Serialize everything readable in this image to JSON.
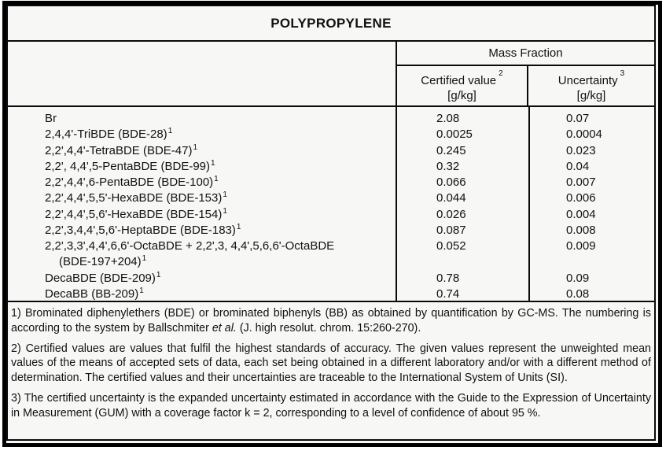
{
  "title": "POLYPROPYLENE",
  "colors": {
    "background": "#f7f7f6",
    "border": "#000000",
    "text": "#111111"
  },
  "table": {
    "group_header": "Mass Fraction",
    "columns": {
      "certified": {
        "label": "Certified value",
        "sup": "2",
        "unit": "[g/kg]"
      },
      "uncertainty": {
        "label": "Uncertainty",
        "sup": "3",
        "unit": "[g/kg]"
      }
    },
    "rows": [
      {
        "name": "Br",
        "sup": "",
        "indent": false,
        "certified": "2.08",
        "uncertainty": "0.07"
      },
      {
        "name": "2,4,4'-TriBDE (BDE-28)",
        "sup": "1",
        "indent": false,
        "certified": "0.0025",
        "uncertainty": "0.0004"
      },
      {
        "name": "2,2',4,4'-TetraBDE (BDE-47)",
        "sup": "1",
        "indent": false,
        "certified": "0.245",
        "uncertainty": "0.023"
      },
      {
        "name": "2,2', 4,4',5-PentaBDE (BDE-99)",
        "sup": "1",
        "indent": false,
        "certified": "0.32",
        "uncertainty": "0.04"
      },
      {
        "name": "2,2',4,4',6-PentaBDE (BDE-100)",
        "sup": "1",
        "indent": false,
        "certified": "0.066",
        "uncertainty": "0.007"
      },
      {
        "name": "2,2',4,4',5,5'-HexaBDE (BDE-153)",
        "sup": "1",
        "indent": false,
        "certified": "0.044",
        "uncertainty": "0.006"
      },
      {
        "name": "2,2',4,4',5,6'-HexaBDE (BDE-154)",
        "sup": "1",
        "indent": false,
        "certified": "0.026",
        "uncertainty": "0.004"
      },
      {
        "name": "2,2',3,4,4',5,6'-HeptaBDE (BDE-183)",
        "sup": "1",
        "indent": false,
        "certified": "0.087",
        "uncertainty": "0.008"
      },
      {
        "name": "2,2',3,3',4,4',6,6'-OctaBDE + 2,2',3, 4,4',5,6,6'-OctaBDE",
        "sup": "",
        "indent": false,
        "certified": "0.052",
        "uncertainty": "0.009"
      },
      {
        "name": "(BDE-197+204)",
        "sup": "1",
        "indent": true,
        "certified": "",
        "uncertainty": ""
      },
      {
        "name": "DecaBDE (BDE-209)",
        "sup": "1",
        "indent": false,
        "certified": "0.78",
        "uncertainty": "0.09"
      },
      {
        "name": "DecaBB (BB-209)",
        "sup": "1",
        "indent": false,
        "certified": "0.74",
        "uncertainty": "0.08"
      }
    ]
  },
  "footnotes": {
    "f1": {
      "pre": "1) Brominated diphenylethers (BDE) or brominated biphenyls (BB) as obtained by quantification by GC-MS. The numbering is according to the system by Ballschmiter ",
      "italic": "et al.",
      "post": " (J. high resolut. chrom. 15:260-270)."
    },
    "f2": "2) Certified values are values that fulfil the highest standards of accuracy. The given values represent the unweighted mean values of the means of accepted sets of data, each set being obtained in a different laboratory and/or with a different method of determination. The certified values and their uncertainties are traceable to the International System of Units (SI).",
    "f3": "3) The certified uncertainty is the expanded uncertainty estimated in accordance with the Guide to the Expression of Uncertainty in Measurement (GUM) with a coverage factor k = 2, corresponding to a level of confidence of about 95 %."
  }
}
